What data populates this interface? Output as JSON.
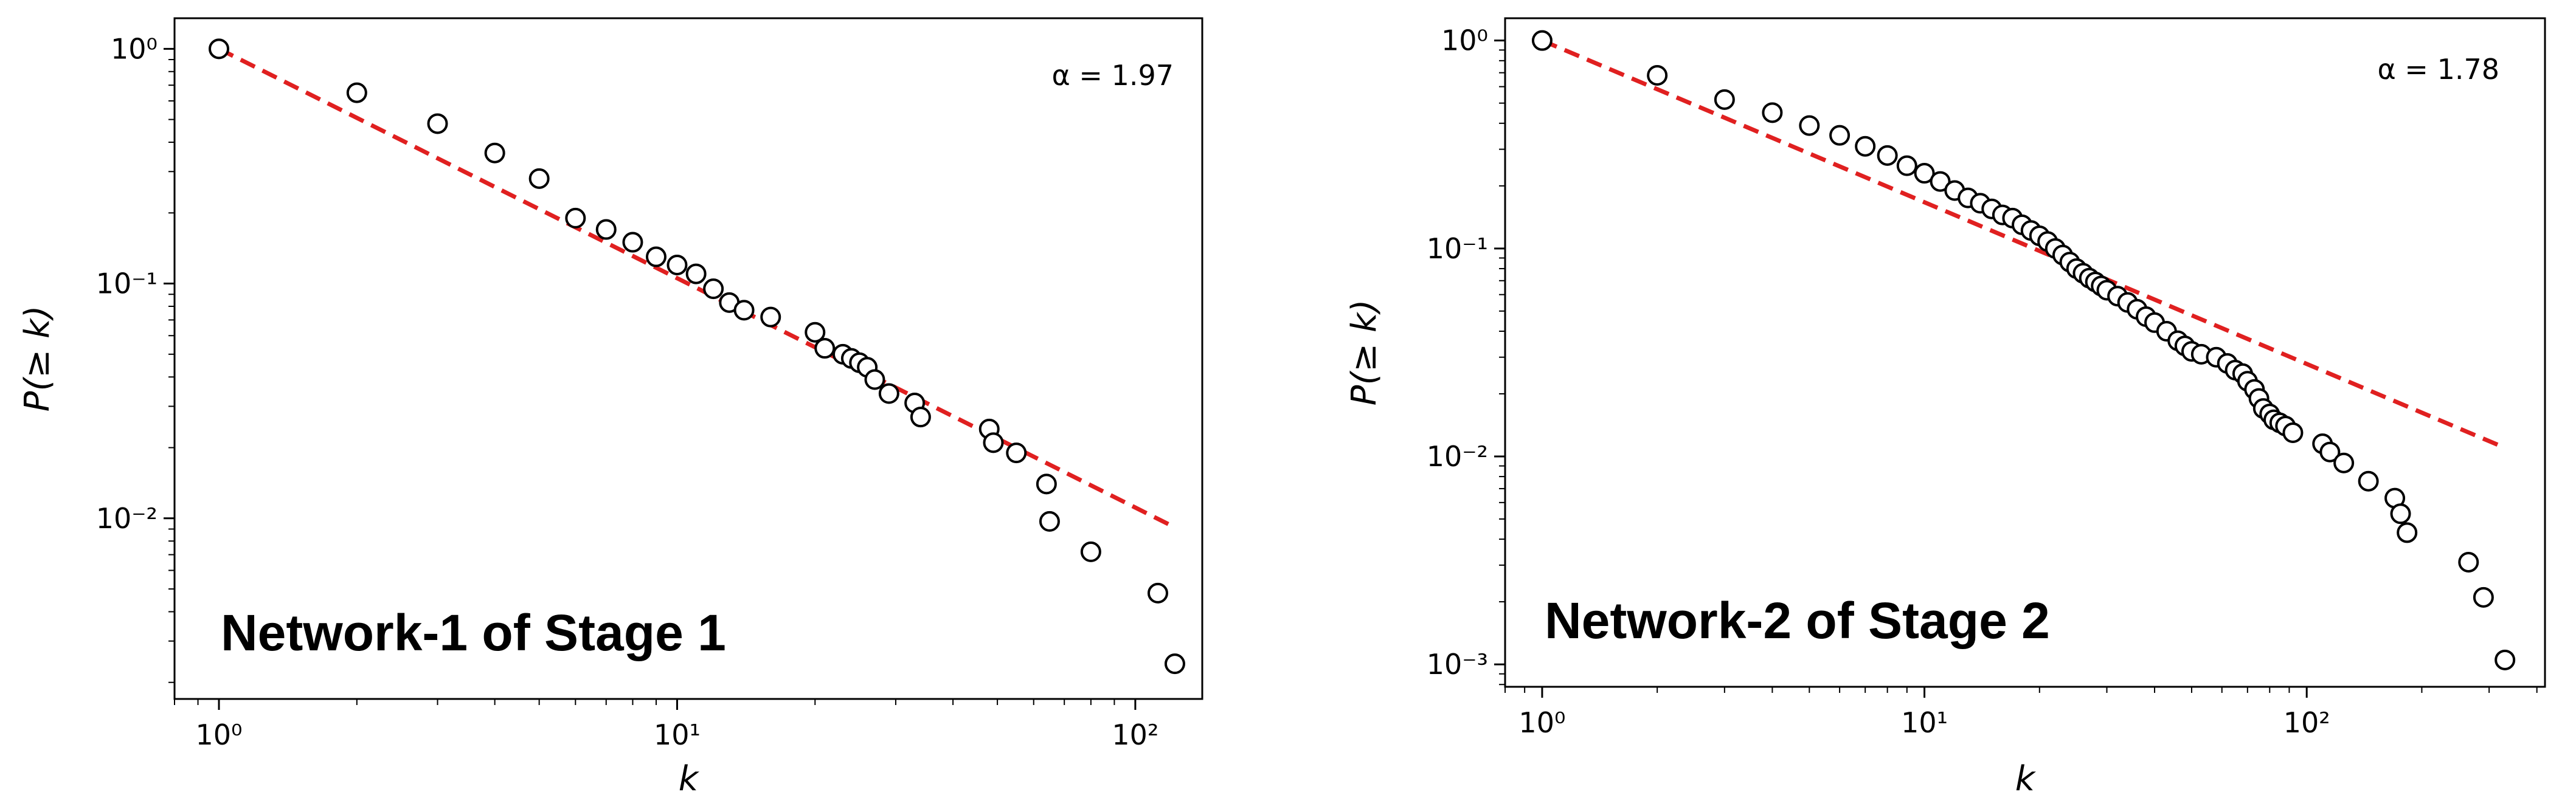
{
  "chart_data": [
    {
      "type": "scatter",
      "x_scale": "log",
      "y_scale": "log",
      "xlabel": "k",
      "ylabel": "P(≥ k)",
      "xlim": [
        0.8,
        140
      ],
      "ylim": [
        0.0017,
        1.35
      ],
      "xticks": [
        {
          "value": 1,
          "label": "10⁰"
        },
        {
          "value": 10,
          "label": "10¹"
        },
        {
          "value": 100,
          "label": "10²"
        }
      ],
      "yticks": [
        {
          "value": 1,
          "label": "10⁰"
        },
        {
          "value": 0.1,
          "label": "10⁻¹"
        },
        {
          "value": 0.01,
          "label": "10⁻²"
        }
      ],
      "annotation": "α = 1.97",
      "panel_label": "Network-1 of Stage 1",
      "fit_line": {
        "x": [
          1,
          120
        ],
        "y": [
          1.0,
          0.0093
        ],
        "color": "#e02020"
      },
      "series": [
        {
          "x": [
            1,
            2,
            3,
            4,
            5,
            6,
            7,
            8,
            9,
            10,
            11,
            12,
            13,
            14,
            16,
            20,
            21,
            23,
            24,
            25,
            26,
            27,
            29,
            33,
            34,
            48,
            49,
            55,
            64,
            65,
            80,
            112,
            122
          ],
          "y": [
            1.0,
            0.65,
            0.48,
            0.36,
            0.28,
            0.19,
            0.17,
            0.15,
            0.13,
            0.12,
            0.11,
            0.095,
            0.083,
            0.077,
            0.072,
            0.062,
            0.053,
            0.05,
            0.048,
            0.046,
            0.044,
            0.039,
            0.034,
            0.031,
            0.027,
            0.024,
            0.021,
            0.019,
            0.014,
            0.0097,
            0.0072,
            0.0048,
            0.0024
          ]
        }
      ]
    },
    {
      "type": "scatter",
      "x_scale": "log",
      "y_scale": "log",
      "xlabel": "k",
      "ylabel": "P(≥ k)",
      "xlim": [
        0.8,
        420
      ],
      "ylim": [
        0.00078,
        1.28
      ],
      "xticks": [
        {
          "value": 1,
          "label": "10⁰"
        },
        {
          "value": 10,
          "label": "10¹"
        },
        {
          "value": 100,
          "label": "10²"
        }
      ],
      "yticks": [
        {
          "value": 1,
          "label": "10⁰"
        },
        {
          "value": 0.1,
          "label": "10⁻¹"
        },
        {
          "value": 0.01,
          "label": "10⁻²"
        },
        {
          "value": 0.001,
          "label": "10⁻³"
        }
      ],
      "annotation": "α = 1.78",
      "panel_label": "Network-2 of Stage 2",
      "fit_line": {
        "x": [
          1,
          330
        ],
        "y": [
          1.0,
          0.011
        ],
        "color": "#e02020"
      },
      "series": [
        {
          "x": [
            1,
            2,
            3,
            4,
            5,
            6,
            7,
            8,
            9,
            10,
            11,
            12,
            13,
            14,
            15,
            16,
            17,
            18,
            19,
            20,
            21,
            22,
            23,
            24,
            25,
            26,
            27,
            28,
            29,
            30,
            32,
            34,
            36,
            38,
            40,
            43,
            46,
            48,
            50,
            53,
            58,
            62,
            65,
            68,
            70,
            73,
            75,
            77,
            80,
            82,
            85,
            88,
            92,
            110,
            115,
            125,
            145,
            170,
            176,
            183,
            265,
            290,
            330
          ],
          "y": [
            1.0,
            0.68,
            0.52,
            0.45,
            0.39,
            0.35,
            0.31,
            0.28,
            0.25,
            0.23,
            0.21,
            0.19,
            0.175,
            0.165,
            0.155,
            0.145,
            0.14,
            0.13,
            0.122,
            0.115,
            0.108,
            0.1,
            0.093,
            0.086,
            0.08,
            0.076,
            0.072,
            0.069,
            0.066,
            0.063,
            0.059,
            0.055,
            0.051,
            0.047,
            0.044,
            0.04,
            0.036,
            0.034,
            0.032,
            0.031,
            0.03,
            0.028,
            0.026,
            0.025,
            0.023,
            0.021,
            0.019,
            0.017,
            0.016,
            0.015,
            0.0145,
            0.014,
            0.013,
            0.0115,
            0.0105,
            0.0093,
            0.0076,
            0.0063,
            0.0053,
            0.0043,
            0.0031,
            0.0021,
            0.00105
          ]
        }
      ]
    }
  ]
}
